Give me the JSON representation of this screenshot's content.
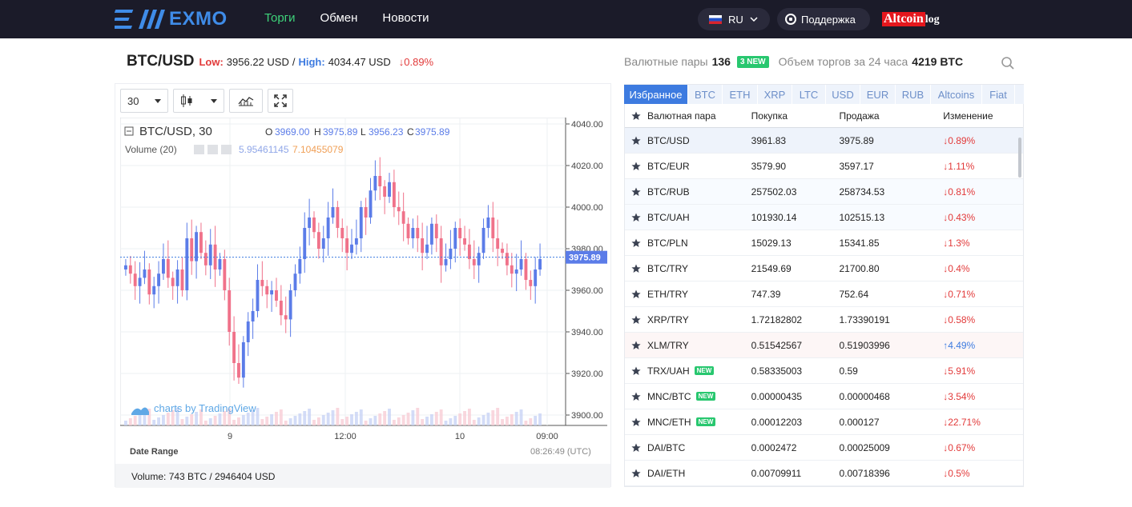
{
  "nav": {
    "logo_text": "EXMO",
    "items": [
      {
        "label": "Торги",
        "active": true
      },
      {
        "label": "Обмен",
        "active": false
      },
      {
        "label": "Новости",
        "active": false
      }
    ],
    "lang": "RU",
    "support": "Поддержка",
    "watermark_a": "Altcoin",
    "watermark_b": "log"
  },
  "pair": {
    "title": "BTC/USD",
    "low_label": "Low:",
    "low_value": "3956.22 USD",
    "sep": "/",
    "high_label": "High:",
    "high_value": "4034.47 USD",
    "change": "↓0.89%"
  },
  "stats": {
    "pairs_label": "Валютные пары",
    "pairs_count": "136",
    "new_badge": "3 NEW",
    "volume_label": "Объем торгов за 24 часа",
    "volume_value": "4219 BTC"
  },
  "chart": {
    "interval": "30",
    "legend_symbol": "BTC/USD, 30",
    "o_label": "O",
    "o_value": "3969.00",
    "h_label": "H",
    "h_value": "3975.89",
    "l_label": "L",
    "l_value": "3956.23",
    "c_label": "C",
    "c_value": "3975.89",
    "volume_label": "Volume (20)",
    "vol_a": "5.95461145",
    "vol_b": "7.10455079",
    "attribution": "charts by TradingView",
    "date_range": "Date Range",
    "time": "08:26:49 (UTC)",
    "last_price": "3975.89",
    "footer": "Volume: 743 BTC / 2946404 USD"
  },
  "chart_data": {
    "type": "candlestick",
    "y_ticks": [
      "4040.00",
      "4020.00",
      "4000.00",
      "3980.00",
      "3960.00",
      "3940.00",
      "3920.00",
      "3900.00"
    ],
    "ylim": [
      3895,
      4040
    ],
    "x_ticks": [
      "9",
      "12:00",
      "10",
      "09:00"
    ],
    "up_color": "#5b7ce8",
    "down_color": "#f0728a",
    "last_price": 3975.89
  },
  "tabs": [
    "Избранное",
    "BTC",
    "ETH",
    "XRP",
    "LTC",
    "USD",
    "EUR",
    "RUB",
    "Altcoins",
    "Fiat"
  ],
  "table": {
    "headers": {
      "pair": "Валютная пара",
      "buy": "Покупка",
      "sell": "Продажа",
      "change": "Изменение"
    },
    "rows": [
      {
        "pair": "BTC/USD",
        "buy": "3961.83",
        "sell": "3975.89",
        "change": "↓0.89%",
        "dir": "neg",
        "new": false,
        "style": "sel"
      },
      {
        "pair": "BTC/EUR",
        "buy": "3579.90",
        "sell": "3597.17",
        "change": "↓1.11%",
        "dir": "neg",
        "new": false,
        "style": ""
      },
      {
        "pair": "BTC/RUB",
        "buy": "257502.03",
        "sell": "258734.53",
        "change": "↓0.81%",
        "dir": "neg",
        "new": false,
        "style": "hi"
      },
      {
        "pair": "BTC/UAH",
        "buy": "101930.14",
        "sell": "102515.13",
        "change": "↓0.43%",
        "dir": "neg",
        "new": false,
        "style": "hi"
      },
      {
        "pair": "BTC/PLN",
        "buy": "15029.13",
        "sell": "15341.85",
        "change": "↓1.3%",
        "dir": "neg",
        "new": false,
        "style": ""
      },
      {
        "pair": "BTC/TRY",
        "buy": "21549.69",
        "sell": "21700.80",
        "change": "↓0.4%",
        "dir": "neg",
        "new": false,
        "style": ""
      },
      {
        "pair": "ETH/TRY",
        "buy": "747.39",
        "sell": "752.64",
        "change": "↓0.71%",
        "dir": "neg",
        "new": false,
        "style": ""
      },
      {
        "pair": "XRP/TRY",
        "buy": "1.72182802",
        "sell": "1.73390191",
        "change": "↓0.58%",
        "dir": "neg",
        "new": false,
        "style": ""
      },
      {
        "pair": "XLM/TRY",
        "buy": "0.51542567",
        "sell": "0.51903996",
        "change": "↑4.49%",
        "dir": "pos",
        "new": false,
        "style": "pink"
      },
      {
        "pair": "TRX/UAH",
        "buy": "0.58335003",
        "sell": "0.59",
        "change": "↓5.91%",
        "dir": "neg",
        "new": true,
        "style": ""
      },
      {
        "pair": "MNC/BTC",
        "buy": "0.00000435",
        "sell": "0.00000468",
        "change": "↓3.54%",
        "dir": "neg",
        "new": true,
        "style": ""
      },
      {
        "pair": "MNC/ETH",
        "buy": "0.00012203",
        "sell": "0.000127",
        "change": "↓22.71%",
        "dir": "neg",
        "new": true,
        "style": ""
      },
      {
        "pair": "DAI/BTC",
        "buy": "0.0002472",
        "sell": "0.00025009",
        "change": "↓0.67%",
        "dir": "neg",
        "new": false,
        "style": ""
      },
      {
        "pair": "DAI/ETH",
        "buy": "0.00709911",
        "sell": "0.00718396",
        "change": "↓0.5%",
        "dir": "neg",
        "new": false,
        "style": ""
      }
    ],
    "new_tag": "NEW"
  }
}
